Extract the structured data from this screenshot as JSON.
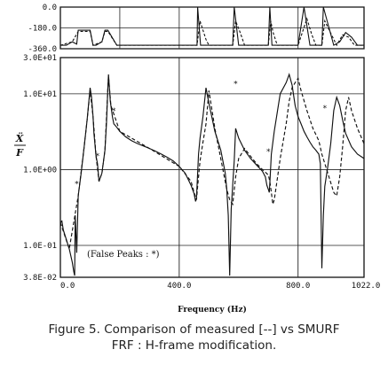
{
  "chart_data": [
    {
      "type": "line",
      "panel": "phase",
      "ylim": [
        -360,
        0
      ],
      "ytick_labels": [
        "0.0",
        "-180.0",
        "-360.0"
      ],
      "yticks": [
        0,
        -180,
        -360
      ],
      "xlim": [
        0,
        1022
      ],
      "series": [
        {
          "style": "solid",
          "x": [
            0,
            20,
            40,
            55,
            60,
            100,
            110,
            120,
            140,
            150,
            160,
            190,
            240,
            400,
            460,
            462,
            472,
            480,
            580,
            585,
            600,
            700,
            705,
            712,
            720,
            800,
            820,
            840,
            880,
            885,
            920,
            940,
            960,
            980,
            1000,
            1022
          ],
          "y": [
            -330,
            -330,
            -300,
            -320,
            -200,
            -200,
            -330,
            -330,
            -300,
            -200,
            -200,
            -330,
            -330,
            -330,
            -330,
            0,
            -330,
            -330,
            -330,
            0,
            -330,
            -330,
            0,
            -330,
            -330,
            -330,
            0,
            -330,
            -330,
            0,
            -330,
            -300,
            -220,
            -260,
            -330,
            -330
          ]
        },
        {
          "style": "dashed",
          "x": [
            0,
            40,
            60,
            100,
            110,
            140,
            150,
            160,
            190,
            400,
            460,
            470,
            480,
            490,
            500,
            580,
            590,
            605,
            620,
            700,
            708,
            716,
            730,
            800,
            830,
            845,
            860,
            880,
            890,
            930,
            950,
            970,
            990,
            1000,
            1022
          ],
          "y": [
            -330,
            -300,
            -210,
            -210,
            -330,
            -300,
            -210,
            -210,
            -330,
            -330,
            -330,
            -120,
            -200,
            -280,
            -330,
            -330,
            -120,
            -220,
            -330,
            -330,
            -120,
            -220,
            -330,
            -330,
            -100,
            -230,
            -330,
            -330,
            -120,
            -330,
            -240,
            -260,
            -330,
            -330,
            -330
          ]
        }
      ]
    },
    {
      "type": "line",
      "panel": "magnitude",
      "scale": "log",
      "xlabel": "Frequency (Hz)",
      "ylabel_top": "Ẍ",
      "ylabel_bottom": "F",
      "ylim": [
        0.038,
        30
      ],
      "ytick_labels": [
        "3.0E+01",
        "1.0E+01",
        "1.0E+00",
        "1.0E-01",
        "3.8E-02"
      ],
      "yticks": [
        30,
        10,
        1,
        0.1,
        0.038
      ],
      "xlim": [
        0,
        1022
      ],
      "xtick_labels": [
        "0.0",
        "400.0",
        "800.0",
        "1022.0"
      ],
      "xticks": [
        0,
        400,
        800,
        1022
      ],
      "annotation": "(False Peaks : *)",
      "false_peaks": [
        {
          "label": "*",
          "x": 55,
          "y": 0.6
        },
        {
          "label": "*",
          "x": 125,
          "y": 1.4
        },
        {
          "label": "*",
          "x": 180,
          "y": 5.5
        },
        {
          "label": "*",
          "x": 590,
          "y": 12.5
        },
        {
          "label": "*",
          "x": 700,
          "y": 1.6
        },
        {
          "label": "*",
          "x": 890,
          "y": 6
        }
      ],
      "series": [
        {
          "style": "solid",
          "x": [
            0,
            5,
            10,
            20,
            30,
            40,
            45,
            48,
            50,
            55,
            60,
            70,
            80,
            90,
            100,
            105,
            110,
            113,
            120,
            125,
            130,
            140,
            150,
            155,
            160,
            162,
            168,
            175,
            180,
            185,
            190,
            200,
            220,
            240,
            260,
            280,
            300,
            320,
            340,
            360,
            380,
            400,
            420,
            440,
            450,
            455,
            458,
            462,
            465,
            470,
            480,
            490,
            500,
            520,
            540,
            555,
            560,
            565,
            570,
            575,
            585,
            590,
            600,
            620,
            640,
            660,
            680,
            690,
            695,
            700,
            703,
            706,
            710,
            720,
            740,
            760,
            770,
            780,
            790,
            800,
            810,
            820,
            830,
            840,
            850,
            860,
            870,
            875,
            880,
            885,
            890,
            900,
            910,
            920,
            930,
            940,
            950,
            960,
            980,
            1000,
            1022
          ],
          "y": [
            0.2,
            0.21,
            0.16,
            0.12,
            0.09,
            0.06,
            0.045,
            0.04,
            0.25,
            0.08,
            0.45,
            0.9,
            2.0,
            4.5,
            12.0,
            9.0,
            5.0,
            3.0,
            1.5,
            1.2,
            0.7,
            0.9,
            1.8,
            4.0,
            12.0,
            18.0,
            8.0,
            5.0,
            4.0,
            3.8,
            3.6,
            3.2,
            2.7,
            2.4,
            2.2,
            2.05,
            1.9,
            1.75,
            1.6,
            1.45,
            1.3,
            1.1,
            0.9,
            0.62,
            0.48,
            0.38,
            0.42,
            0.9,
            1.6,
            2.6,
            5.0,
            12.0,
            7.5,
            3.2,
            1.8,
            0.9,
            0.55,
            0.25,
            0.04,
            0.3,
            1.3,
            3.5,
            2.6,
            1.8,
            1.4,
            1.15,
            0.95,
            0.8,
            0.62,
            0.55,
            0.5,
            0.8,
            1.6,
            3.2,
            10.0,
            14.0,
            18.0,
            13.0,
            7.0,
            5.0,
            4.0,
            3.2,
            2.7,
            2.3,
            2.0,
            1.8,
            1.6,
            1.2,
            0.05,
            0.25,
            0.6,
            1.1,
            2.2,
            6.0,
            9.0,
            7.0,
            4.5,
            3.0,
            2.0,
            1.6,
            1.4
          ]
        },
        {
          "style": "dashed",
          "x": [
            0,
            30,
            60,
            80,
            90,
            100,
            110,
            120,
            130,
            140,
            150,
            160,
            162,
            170,
            200,
            300,
            400,
            440,
            450,
            458,
            462,
            470,
            480,
            490,
            500,
            520,
            560,
            570,
            580,
            590,
            600,
            620,
            640,
            660,
            680,
            700,
            705,
            710,
            715,
            720,
            730,
            740,
            760,
            770,
            780,
            790,
            800,
            810,
            830,
            850,
            870,
            880,
            900,
            920,
            930,
            940,
            950,
            960,
            970,
            980,
            1000,
            1022
          ],
          "y": [
            0.2,
            0.09,
            0.45,
            2.0,
            4.5,
            11.0,
            5.0,
            1.5,
            0.7,
            0.9,
            1.8,
            12.0,
            17.0,
            7.0,
            3.2,
            1.9,
            1.1,
            0.7,
            0.5,
            0.4,
            0.6,
            1.3,
            2.3,
            4.0,
            11.0,
            3.5,
            0.55,
            0.4,
            0.35,
            0.8,
            1.4,
            1.9,
            1.5,
            1.2,
            1.0,
            0.85,
            0.7,
            0.5,
            0.35,
            0.4,
            0.75,
            1.4,
            4.0,
            8.0,
            12.0,
            14.0,
            16.0,
            11.0,
            6.0,
            3.5,
            2.4,
            1.6,
            0.9,
            0.5,
            0.45,
            0.8,
            2.0,
            6.0,
            9.0,
            6.0,
            3.5,
            2.2
          ]
        }
      ]
    }
  ],
  "caption": {
    "line1": "Figure 5.  Comparison of measured [--] vs SMURF",
    "line2": "FRF : H-frame modification."
  }
}
